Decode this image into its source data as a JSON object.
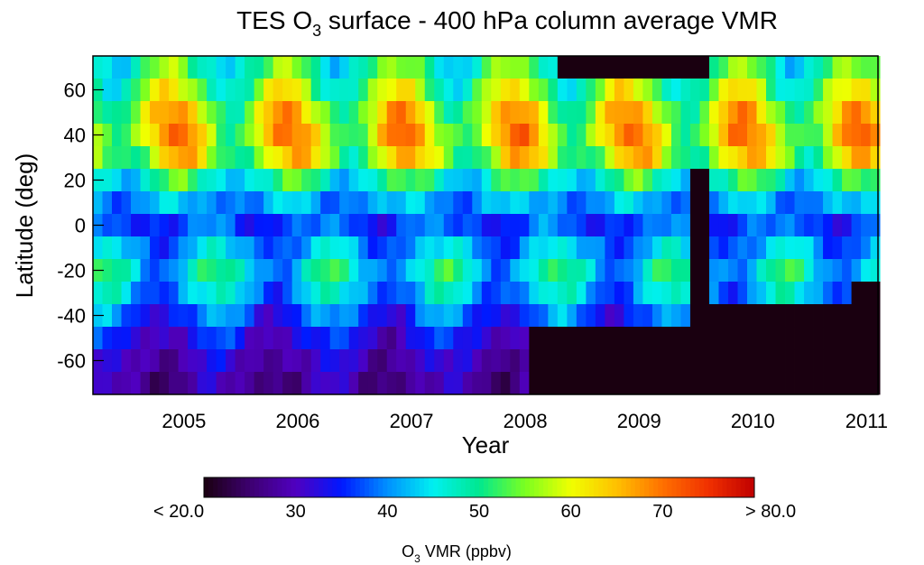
{
  "chart_data": {
    "type": "heatmap",
    "title": {
      "prefix": "TES O",
      "sub": "3",
      "suffix": " surface - 400 hPa column average VMR"
    },
    "xlabel": "Year",
    "ylabel": "Latitude (deg)",
    "x_ticks": [
      "2005",
      "2006",
      "2007",
      "2008",
      "2009",
      "2010",
      "2011"
    ],
    "y_ticks": [
      "60",
      "40",
      "20",
      "0",
      "-20",
      "-40",
      "-60"
    ],
    "x_range": [
      2004.7,
      2011.6
    ],
    "y_range": [
      -75,
      75
    ],
    "lat_bands": [
      -75,
      -65,
      -55,
      -45,
      -35,
      -25,
      -15,
      -5,
      5,
      15,
      25,
      35,
      45,
      55,
      65,
      75
    ],
    "months_per_year": 12,
    "missing_color": "#1a0010",
    "colorbar": {
      "min": 20,
      "max": 80,
      "min_label": "< 20.0",
      "max_label": "> 80.0",
      "ticks": [
        "30",
        "40",
        "50",
        "60",
        "70"
      ],
      "label": {
        "prefix": "O",
        "sub": "3",
        "suffix": " VMR (ppbv)"
      },
      "colors": [
        "#1a0010",
        "#3d0070",
        "#5000c0",
        "#0018ff",
        "#0090ff",
        "#00f0f0",
        "#00e890",
        "#7aff20",
        "#f0ff00",
        "#ffc000",
        "#ff7000",
        "#f03000",
        "#c00000"
      ]
    },
    "band_profiles": [
      {
        "lat": 70,
        "mean": 50,
        "amp": 7,
        "phase": 4.5
      },
      {
        "lat": 60,
        "mean": 54,
        "amp": 9,
        "phase": 4.5
      },
      {
        "lat": 50,
        "mean": 59,
        "amp": 10,
        "phase": 4.8
      },
      {
        "lat": 40,
        "mean": 61,
        "amp": 10,
        "phase": 5.2
      },
      {
        "lat": 30,
        "mean": 58,
        "amp": 9,
        "phase": 5.8
      },
      {
        "lat": 20,
        "mean": 48,
        "amp": 6,
        "phase": 5.5
      },
      {
        "lat": 10,
        "mean": 41,
        "amp": 3,
        "phase": 5.0
      },
      {
        "lat": 0,
        "mean": 37,
        "amp": 3,
        "phase": 8.5
      },
      {
        "lat": -10,
        "mean": 41,
        "amp": 5,
        "phase": 9.5
      },
      {
        "lat": -20,
        "mean": 45,
        "amp": 7,
        "phase": 9.5
      },
      {
        "lat": -30,
        "mean": 42,
        "amp": 6,
        "phase": 9.5
      },
      {
        "lat": -40,
        "mean": 37,
        "amp": 5,
        "phase": 9.5
      },
      {
        "lat": -50,
        "mean": 33,
        "amp": 4,
        "phase": 9.5
      },
      {
        "lat": -60,
        "mean": 30,
        "amp": 3,
        "phase": 9.5
      },
      {
        "lat": -70,
        "mean": 28,
        "amp": 3,
        "phase": 9.5
      }
    ]
  }
}
